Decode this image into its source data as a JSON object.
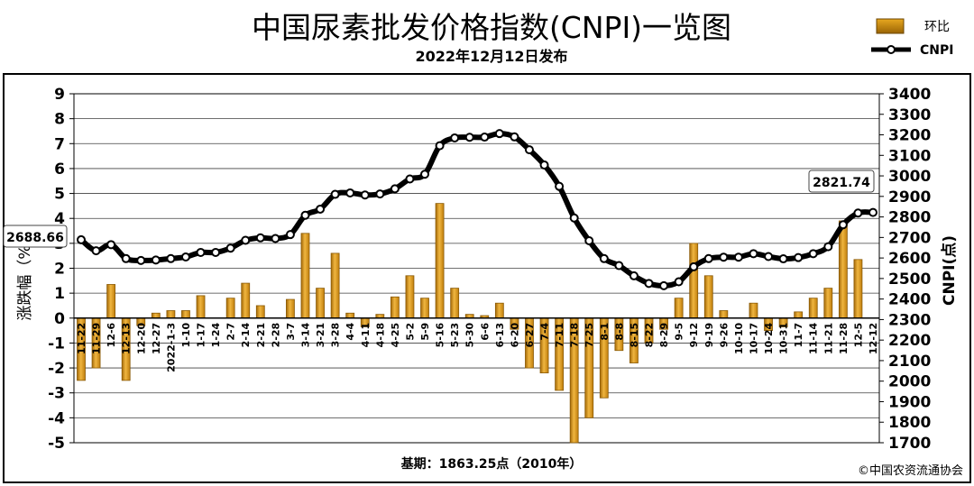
{
  "title": "中国尿素批发价格指数(CNPI)一览图",
  "subtitle": "2022年12月12日发布",
  "legend": {
    "bar_label": "环比",
    "line_label": "CNPI"
  },
  "left_axis_label": "涨跌幅（%）",
  "right_axis_label": "CNPI(点)",
  "footer": {
    "base": "基期：1863.25点（2010年）",
    "copyright": "©中国农资流通协会"
  },
  "callouts": {
    "start": "2688.66",
    "end": "2821.74"
  },
  "colors": {
    "bar": "#e3a21a",
    "bar_edge": "#8a5a06",
    "line": "#000000",
    "background": "#ffffff",
    "frame": "#000000",
    "grid": "#000000"
  },
  "chart_data": {
    "type": "bar",
    "categories": [
      "11-22",
      "11-29",
      "12-6",
      "12-13",
      "12-20",
      "12-27",
      "2022-1-3",
      "1-10",
      "1-17",
      "1-24",
      "2-7",
      "2-14",
      "2-21",
      "2-28",
      "3-7",
      "3-14",
      "3-21",
      "3-28",
      "4-4",
      "4-11",
      "4-18",
      "4-25",
      "5-2",
      "5-9",
      "5-16",
      "5-23",
      "5-30",
      "6-6",
      "6-13",
      "6-20",
      "6-27",
      "7-4",
      "7-11",
      "7-18",
      "7-25",
      "8-1",
      "8-8",
      "8-15",
      "8-22",
      "8-29",
      "9-5",
      "9-12",
      "9-19",
      "9-26",
      "10-10",
      "10-17",
      "10-24",
      "10-31",
      "11-7",
      "11-14",
      "11-21",
      "11-28",
      "12-5",
      "12-12"
    ],
    "series": [
      {
        "name": "环比",
        "type": "bar",
        "axis": "left",
        "values": [
          -2.5,
          -2.0,
          1.35,
          -2.5,
          -0.3,
          0.2,
          0.3,
          0.3,
          0.9,
          0.0,
          0.8,
          1.4,
          0.5,
          0.0,
          0.75,
          3.4,
          1.2,
          2.6,
          0.2,
          -0.35,
          0.15,
          0.85,
          1.7,
          0.8,
          4.6,
          1.2,
          0.15,
          0.1,
          0.6,
          -0.45,
          -2.0,
          -2.2,
          -2.9,
          -5.0,
          -4.0,
          -3.2,
          -1.3,
          -1.8,
          -1.0,
          -0.45,
          0.8,
          3.0,
          1.7,
          0.3,
          0.0,
          0.6,
          -0.5,
          -0.35,
          0.25,
          0.8,
          1.2,
          3.9,
          2.35,
          0.0
        ]
      },
      {
        "name": "CNPI",
        "type": "line",
        "axis": "right",
        "values": [
          2688.66,
          2635,
          2665,
          2597,
          2588,
          2590,
          2597,
          2605,
          2627,
          2627,
          2648,
          2686,
          2698,
          2695,
          2714,
          2808,
          2838,
          2910,
          2917,
          2907,
          2912,
          2937,
          2985,
          3008,
          3147,
          3185,
          3188,
          3189,
          3206,
          3190,
          3127,
          3053,
          2949,
          2795,
          2684,
          2597,
          2563,
          2513,
          2476,
          2465,
          2484,
          2557,
          2597,
          2604,
          2604,
          2621,
          2607,
          2596,
          2602,
          2621,
          2655,
          2762,
          2819,
          2821.74
        ]
      }
    ],
    "left_axis": {
      "ylim": [
        -5,
        9
      ],
      "ticks": [
        -5,
        -4,
        -3,
        -2,
        -1,
        0,
        1,
        2,
        3,
        4,
        5,
        6,
        7,
        8,
        9
      ]
    },
    "right_axis": {
      "ylim": [
        1700,
        3400
      ],
      "ticks": [
        1700,
        1800,
        1900,
        2000,
        2100,
        2200,
        2300,
        2400,
        2500,
        2600,
        2700,
        2800,
        2900,
        3000,
        3100,
        3200,
        3300,
        3400
      ]
    },
    "grid": true,
    "legend_position": "top-right"
  }
}
